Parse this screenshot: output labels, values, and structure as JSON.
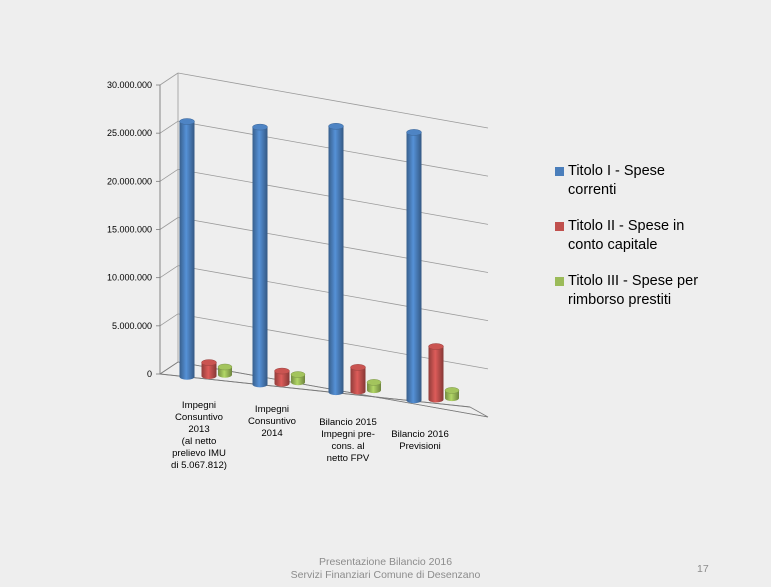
{
  "chart_data": {
    "type": "bar",
    "categories": [
      [
        "Impegni",
        "Consuntivo",
        "2013",
        "(al netto",
        "prelievo IMU",
        "di 5.067.812)"
      ],
      [
        "Impegni",
        "Consuntivo",
        "2014"
      ],
      [
        "Bilancio 2015",
        "Impegni pre-",
        "cons.    al",
        "netto FPV"
      ],
      [
        "Bilancio 2016",
        "Previsioni"
      ]
    ],
    "series": [
      {
        "name": "Titolo I - Spese correnti",
        "legend_lines": [
          "Titolo I - Spese",
          "correnti"
        ],
        "color": "#4a7ebb",
        "values": [
          26500000,
          26700000,
          27600000,
          27800000
        ]
      },
      {
        "name": "Titolo II - Spese in conto capitale",
        "legend_lines": [
          "Titolo II - Spese in",
          "conto capitale"
        ],
        "color": "#c0504d",
        "values": [
          1400000,
          1300000,
          2500000,
          5500000
        ]
      },
      {
        "name": "Titolo III - Spese per rimborso prestiti",
        "legend_lines": [
          "Titolo III - Spese per",
          "rimborso prestiti"
        ],
        "color": "#9bbb59",
        "values": [
          800000,
          800000,
          800000,
          800000
        ]
      }
    ],
    "ylim": [
      0,
      30000000
    ],
    "yticks": [
      0,
      5000000,
      10000000,
      15000000,
      20000000,
      25000000,
      30000000
    ],
    "ytick_labels": [
      "0",
      "5.000.000",
      "10.000.000",
      "15.000.000",
      "20.000.000",
      "25.000.000",
      "30.000.000"
    ],
    "grid": true,
    "legend_position": "right"
  },
  "footer": {
    "line1": "Presentazione Bilancio 2016",
    "line2": "Servizi Finanziari Comune di Desenzano"
  },
  "page_number": "17"
}
